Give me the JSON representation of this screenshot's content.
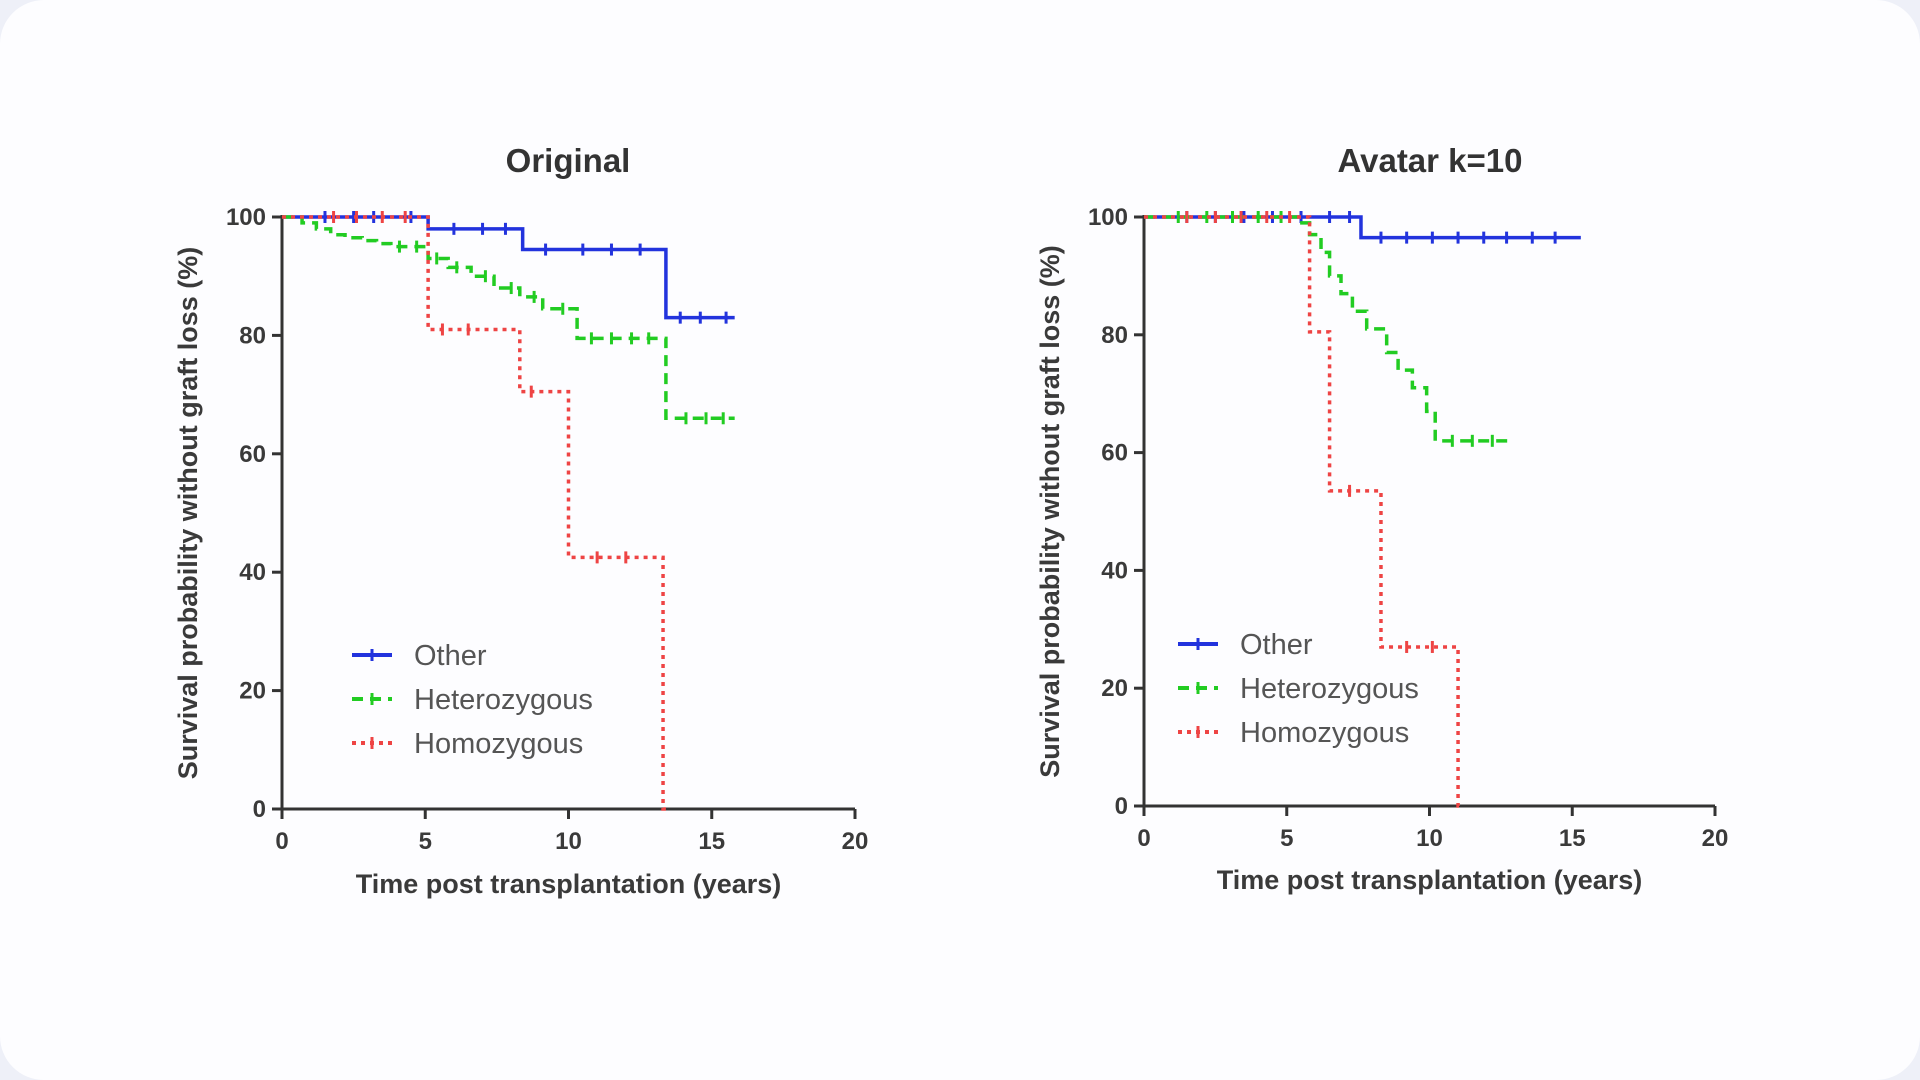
{
  "chart_data": [
    {
      "type": "line",
      "subtype": "kaplan-meier step",
      "title": "Original",
      "xlabel": "Time post transplantation (years)",
      "ylabel": "Survival probability without graft loss (%)",
      "xlim": [
        0,
        20
      ],
      "ylim": [
        0,
        100
      ],
      "xticks": [
        "0",
        "5",
        "10",
        "15",
        "20"
      ],
      "yticks": [
        "0",
        "20",
        "40",
        "60",
        "80",
        "100"
      ],
      "legend_position": "bottom-left",
      "series": [
        {
          "name": "Other",
          "color": "#2233dd",
          "style": "solid",
          "x": [
            0,
            5.1,
            8.4,
            13.4,
            15.8
          ],
          "y": [
            100,
            98,
            94.5,
            83,
            83
          ],
          "censor": [
            1.5,
            2.5,
            3.2,
            4.5,
            6,
            7,
            7.8,
            9.2,
            10.5,
            11.5,
            12.5,
            13.9,
            14.6,
            15.5
          ]
        },
        {
          "name": "Heterozygous",
          "color": "#22cc22",
          "style": "dashed",
          "x": [
            0,
            0.7,
            1.2,
            1.7,
            2.2,
            2.8,
            3.3,
            3.8,
            5.1,
            5.8,
            6.6,
            7.4,
            8.3,
            9.1,
            10.3,
            13.4,
            15.8
          ],
          "y": [
            100,
            99,
            98,
            97,
            96.5,
            96,
            95.5,
            95,
            93,
            91.5,
            90,
            88,
            86.5,
            84.5,
            79.5,
            66,
            66
          ],
          "censor": [
            4.1,
            4.7,
            5.4,
            6.1,
            7.1,
            8,
            8.8,
            9.8,
            10.8,
            11.5,
            12.2,
            12.8,
            14.1,
            14.8,
            15.4
          ]
        },
        {
          "name": "Homozygous",
          "color": "#ee4444",
          "style": "dotted",
          "x": [
            0,
            5.1,
            8.3,
            10,
            13.3,
            13.4
          ],
          "y": [
            100,
            81,
            70.5,
            42.5,
            0,
            0
          ],
          "censor": [
            1.8,
            2.6,
            3.5,
            4.3,
            5.6,
            6.5,
            8.7,
            11,
            12
          ]
        }
      ]
    },
    {
      "type": "line",
      "subtype": "kaplan-meier step",
      "title": "Avatar k=10",
      "xlabel": "Time post transplantation (years)",
      "ylabel": "Survival probability without graft loss (%)",
      "xlim": [
        0,
        20
      ],
      "ylim": [
        0,
        100
      ],
      "xticks": [
        "0",
        "5",
        "10",
        "15",
        "20"
      ],
      "yticks": [
        "0",
        "20",
        "40",
        "60",
        "80",
        "100"
      ],
      "legend_position": "bottom-left",
      "series": [
        {
          "name": "Other",
          "color": "#2233dd",
          "style": "solid",
          "x": [
            0,
            7.6,
            15.3
          ],
          "y": [
            100,
            96.5,
            96.5
          ],
          "censor": [
            1.5,
            2.5,
            3.5,
            4.5,
            5.5,
            6.5,
            7.2,
            8.3,
            9.2,
            10.1,
            11,
            11.9,
            12.7,
            13.6,
            14.4
          ]
        },
        {
          "name": "Heterozygous",
          "color": "#22cc22",
          "style": "dashed",
          "x": [
            0,
            5.4,
            5.8,
            6.2,
            6.5,
            6.9,
            7.3,
            7.8,
            8.5,
            8.9,
            9.4,
            9.9,
            10.2,
            12.8
          ],
          "y": [
            100,
            99,
            97,
            94,
            90,
            87,
            84,
            81,
            77,
            74,
            71,
            67,
            62,
            62
          ],
          "censor": [
            1.2,
            2.2,
            3.1,
            4,
            4.8,
            10.8,
            11.5,
            12.2
          ]
        },
        {
          "name": "Homozygous",
          "color": "#ee4444",
          "style": "dotted",
          "x": [
            0,
            5.8,
            6.5,
            8.3,
            11.0,
            11.1
          ],
          "y": [
            100,
            80.5,
            53.5,
            27,
            0,
            0
          ],
          "censor": [
            1.5,
            2.5,
            3.4,
            4.3,
            5.1,
            7.2,
            9.2,
            10.1
          ]
        }
      ]
    }
  ]
}
